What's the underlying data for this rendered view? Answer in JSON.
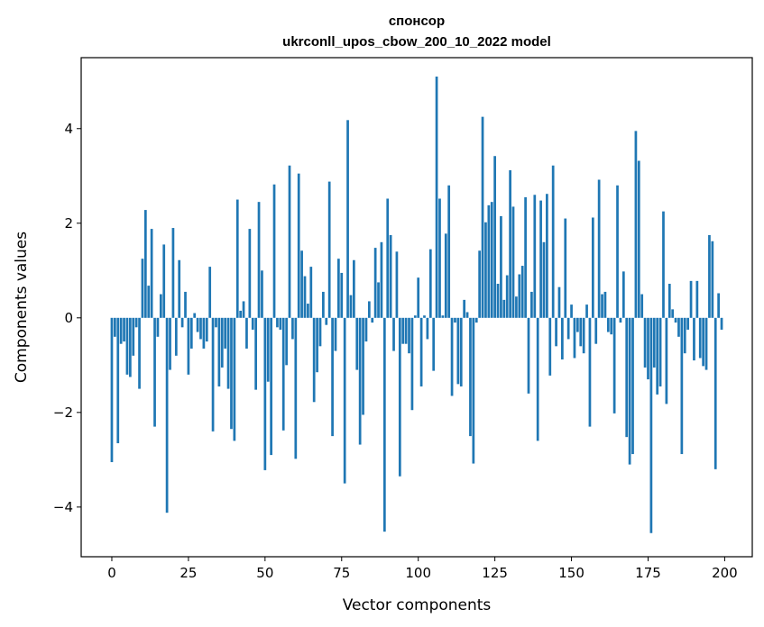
{
  "chart_data": {
    "type": "bar",
    "title": "спонсор",
    "subtitle": "ukrconll_upos_cbow_200_10_2022 model",
    "xlabel": "Vector components",
    "ylabel": "Components values",
    "xlim": [
      -10,
      209
    ],
    "ylim": [
      -5.05,
      5.5
    ],
    "xticks": [
      0,
      25,
      50,
      75,
      100,
      125,
      150,
      175,
      200
    ],
    "yticks": [
      -4,
      -2,
      0,
      2,
      4
    ],
    "ytick_labels": [
      "−4",
      "−2",
      "0",
      "2",
      "4"
    ],
    "bar_color": "#1f77b4",
    "grid": false,
    "x": [
      0,
      1,
      2,
      3,
      4,
      5,
      6,
      7,
      8,
      9,
      10,
      11,
      12,
      13,
      14,
      15,
      16,
      17,
      18,
      19,
      20,
      21,
      22,
      23,
      24,
      25,
      26,
      27,
      28,
      29,
      30,
      31,
      32,
      33,
      34,
      35,
      36,
      37,
      38,
      39,
      40,
      41,
      42,
      43,
      44,
      45,
      46,
      47,
      48,
      49,
      50,
      51,
      52,
      53,
      54,
      55,
      56,
      57,
      58,
      59,
      60,
      61,
      62,
      63,
      64,
      65,
      66,
      67,
      68,
      69,
      70,
      71,
      72,
      73,
      74,
      75,
      76,
      77,
      78,
      79,
      80,
      81,
      82,
      83,
      84,
      85,
      86,
      87,
      88,
      89,
      90,
      91,
      92,
      93,
      94,
      95,
      96,
      97,
      98,
      99,
      100,
      101,
      102,
      103,
      104,
      105,
      106,
      107,
      108,
      109,
      110,
      111,
      112,
      113,
      114,
      115,
      116,
      117,
      118,
      119,
      120,
      121,
      122,
      123,
      124,
      125,
      126,
      127,
      128,
      129,
      130,
      131,
      132,
      133,
      134,
      135,
      136,
      137,
      138,
      139,
      140,
      141,
      142,
      143,
      144,
      145,
      146,
      147,
      148,
      149,
      150,
      151,
      152,
      153,
      154,
      155,
      156,
      157,
      158,
      159,
      160,
      161,
      162,
      163,
      164,
      165,
      166,
      167,
      168,
      169,
      170,
      171,
      172,
      173,
      174,
      175,
      176,
      177,
      178,
      179,
      180,
      181,
      182,
      183,
      184,
      185,
      186,
      187,
      188,
      189,
      190,
      191,
      192,
      193,
      194,
      195,
      196,
      197,
      198,
      199
    ],
    "values": [
      -3.05,
      -0.4,
      -2.65,
      -0.55,
      -0.5,
      -1.2,
      -1.25,
      -0.8,
      -0.2,
      -1.5,
      1.25,
      2.28,
      0.68,
      1.88,
      -2.3,
      -0.4,
      0.5,
      1.55,
      -4.12,
      -1.1,
      1.9,
      -0.8,
      1.22,
      -0.2,
      0.55,
      -1.2,
      -0.65,
      0.1,
      -0.3,
      -0.45,
      -0.65,
      -0.5,
      1.08,
      -2.4,
      -0.2,
      -1.45,
      -1.05,
      -0.65,
      -1.5,
      -2.35,
      -2.6,
      2.5,
      0.15,
      0.35,
      -0.65,
      1.88,
      -0.25,
      -1.52,
      2.45,
      1.0,
      -3.22,
      -1.35,
      -2.9,
      2.82,
      -0.2,
      -0.25,
      -2.38,
      -1.0,
      3.22,
      -0.45,
      -2.98,
      3.05,
      1.42,
      0.88,
      0.3,
      1.08,
      -1.78,
      -1.15,
      -0.6,
      0.55,
      -0.15,
      2.88,
      -2.5,
      -0.7,
      1.25,
      0.95,
      -3.5,
      4.18,
      0.48,
      1.22,
      -1.1,
      -2.68,
      -2.05,
      -0.5,
      0.35,
      -0.1,
      1.48,
      0.75,
      1.6,
      -4.52,
      2.52,
      1.75,
      -0.7,
      1.4,
      -3.35,
      -0.55,
      -0.55,
      -0.75,
      -1.95,
      0.05,
      0.85,
      -1.45,
      0.05,
      -0.45,
      1.45,
      -1.12,
      5.1,
      2.52,
      0.05,
      1.78,
      2.8,
      -1.65,
      -0.1,
      -1.4,
      -1.45,
      0.38,
      0.12,
      -2.5,
      -3.08,
      -0.1,
      1.42,
      4.25,
      2.02,
      2.38,
      2.45,
      3.42,
      0.72,
      2.15,
      0.38,
      0.9,
      3.12,
      2.35,
      0.45,
      0.92,
      1.1,
      2.55,
      -1.6,
      0.55,
      2.6,
      -2.6,
      2.48,
      1.6,
      2.62,
      -1.22,
      3.22,
      -0.6,
      0.65,
      -0.88,
      2.1,
      -0.45,
      0.28,
      -0.85,
      -0.3,
      -0.6,
      -0.75,
      0.28,
      -2.3,
      2.12,
      -0.55,
      2.92,
      0.5,
      0.55,
      -0.3,
      -0.35,
      -2.02,
      2.8,
      -0.1,
      0.98,
      -2.52,
      -3.1,
      -2.88,
      3.95,
      3.32,
      0.5,
      -1.05,
      -1.3,
      -4.55,
      -1.05,
      -1.62,
      -1.45,
      2.25,
      -1.82,
      0.72,
      0.18,
      -0.1,
      -0.4,
      -2.88,
      -0.75,
      -0.25,
      0.78,
      -0.9,
      0.78,
      -0.85,
      -1.02,
      -1.1,
      1.75,
      1.62,
      -3.2,
      0.52,
      -0.25
    ]
  }
}
